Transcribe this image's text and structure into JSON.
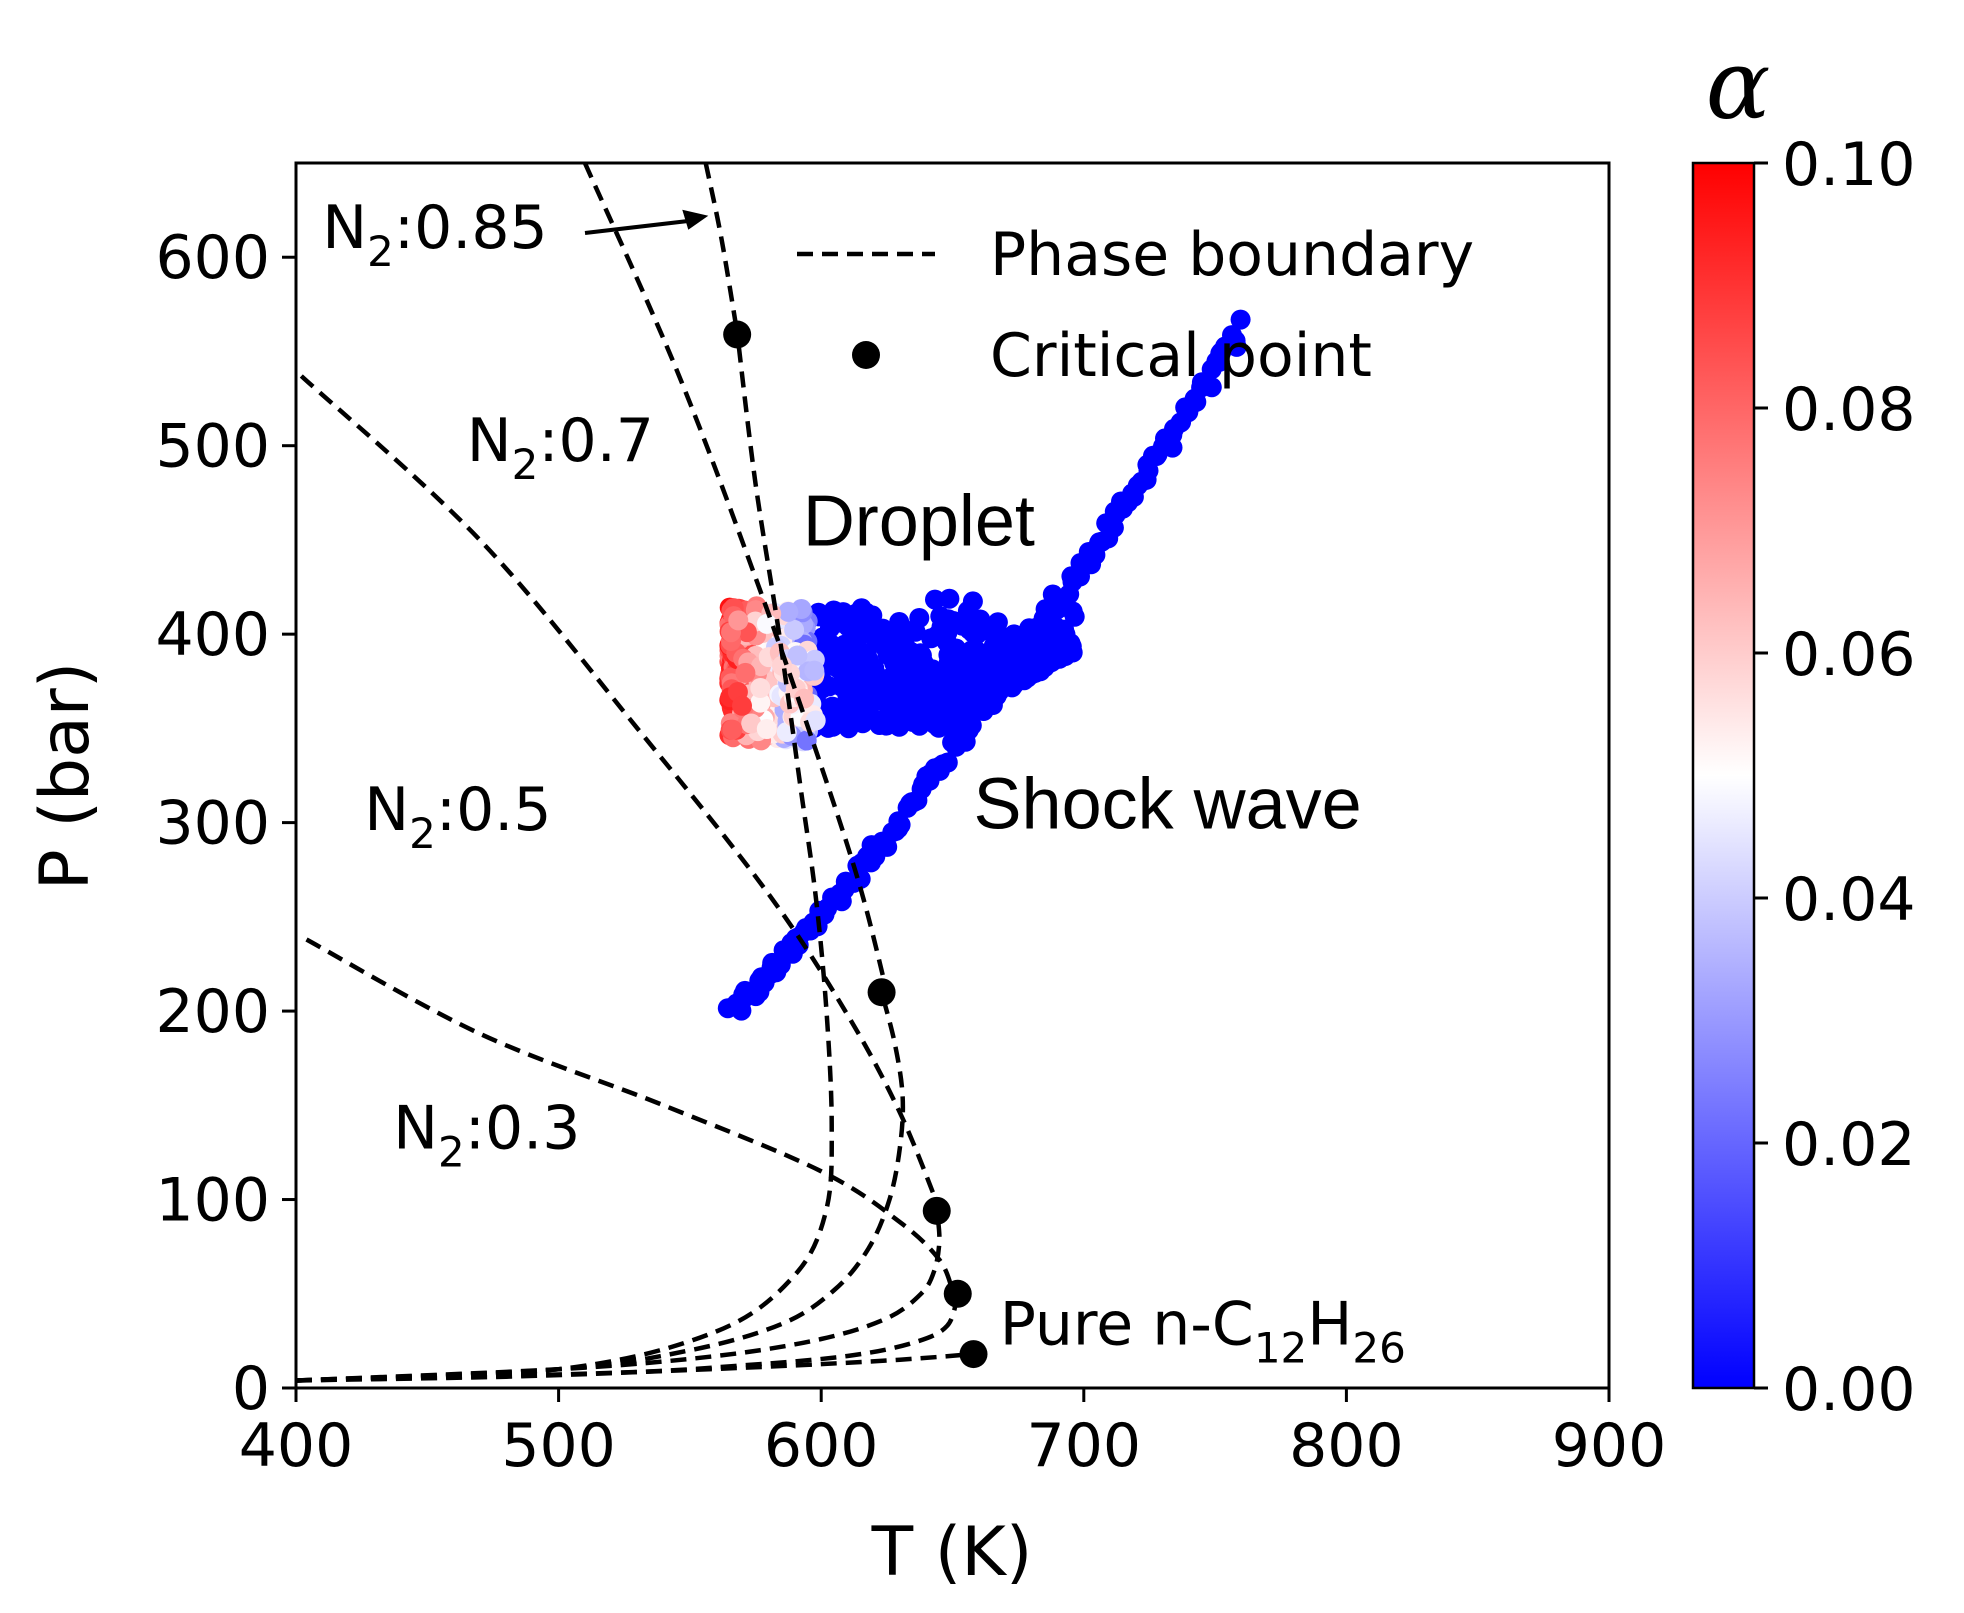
{
  "chart_data": {
    "type": "scatter",
    "xlabel": "T (K)",
    "ylabel": "P (bar)",
    "xlim": [
      400,
      900
    ],
    "ylim": [
      0,
      650
    ],
    "xticks": [
      "400",
      "500",
      "600",
      "700",
      "800",
      "900"
    ],
    "yticks": [
      "0",
      "100",
      "200",
      "300",
      "400",
      "500",
      "600"
    ],
    "legend": {
      "position": "top-right",
      "entries": [
        {
          "label": "Phase boundary",
          "style": "dashed-line"
        },
        {
          "label": "Critical point",
          "style": "black-dot"
        }
      ]
    },
    "colorbar": {
      "label": "α",
      "range": [
        0.0,
        0.1
      ],
      "ticks": [
        "0.00",
        "0.02",
        "0.04",
        "0.06",
        "0.08",
        "0.10"
      ],
      "colormap": "bwr",
      "colors": {
        "low": "#0000ff",
        "mid": "#ffffff",
        "high": "#ff0000"
      }
    },
    "annotations": [
      {
        "sub_parts": [
          "N",
          "2",
          ":0.85"
        ],
        "x": 410,
        "y": 605,
        "arrow_to": [
          557,
          622
        ]
      },
      {
        "sub_parts": [
          "N",
          "2",
          ":0.7"
        ],
        "x": 465,
        "y": 492
      },
      {
        "sub_parts": [
          "N",
          "2",
          ":0.5"
        ],
        "x": 426,
        "y": 296
      },
      {
        "sub_parts": [
          "N",
          "2",
          ":0.3"
        ],
        "x": 437,
        "y": 127
      },
      {
        "sub_parts": [
          "Pure n-C",
          "12",
          "H",
          "26"
        ],
        "x": 668,
        "y": 23
      },
      {
        "text": "Droplet",
        "x": 593,
        "y": 447
      },
      {
        "text": "Shock wave",
        "x": 658,
        "y": 297
      }
    ],
    "phase_boundaries": [
      {
        "name": "Pure n-C12H26",
        "x": [
          400,
          480,
          540,
          590,
          630,
          658
        ],
        "y": [
          4,
          6,
          9,
          12,
          15,
          18
        ]
      },
      {
        "name": "N2:0.3",
        "x": [
          400,
          520,
          570,
          610,
          635,
          648,
          652
        ],
        "y": [
          4,
          8,
          12,
          17,
          24,
          33,
          50
        ]
      },
      {
        "name": "N2:0.5",
        "x": [
          400,
          500,
          560,
          600,
          625,
          638,
          643,
          645,
          644
        ],
        "y": [
          4,
          10,
          17,
          26,
          37,
          50,
          62,
          78,
          95
        ]
      },
      {
        "name": "N2:0.7",
        "x": [
          400,
          500,
          550,
          585,
          605,
          618,
          626,
          630,
          631,
          628,
          623
        ],
        "y": [
          4,
          10,
          20,
          34,
          52,
          74,
          100,
          128,
          155,
          183,
          210
        ]
      },
      {
        "name": "N2:0.85",
        "x": [
          400,
          500,
          560,
          590,
          602,
          604,
          602,
          598,
          592,
          584,
          575,
          568
        ],
        "y": [
          4,
          10,
          30,
          60,
          95,
          140,
          200,
          260,
          320,
          400,
          480,
          560
        ]
      },
      {
        "name": "N2:0.3 branch",
        "x": [
          404,
          470,
          540,
          600,
          630,
          645,
          650
        ],
        "y": [
          238,
          188,
          150,
          115,
          88,
          68,
          52
        ]
      },
      {
        "name": "N2:0.5 branch",
        "x": [
          402,
          470,
          530,
          580,
          610,
          630,
          645
        ],
        "y": [
          537,
          450,
          350,
          262,
          198,
          146,
          95
        ]
      },
      {
        "name": "N2:0.7 branch",
        "x": [
          510,
          545,
          575,
          600,
          615,
          625
        ],
        "y": [
          650,
          540,
          430,
          330,
          265,
          210
        ]
      },
      {
        "name": "N2:0.85 branch",
        "x": [
          556,
          562,
          568
        ],
        "y": [
          650,
          610,
          560
        ]
      }
    ],
    "critical_points": [
      {
        "x": 568,
        "y": 559
      },
      {
        "x": 623,
        "y": 210
      },
      {
        "x": 644,
        "y": 94
      },
      {
        "x": 652,
        "y": 50
      },
      {
        "x": 658,
        "y": 18
      }
    ],
    "series": [
      {
        "name": "Shock wave",
        "x_range": [
          565,
          762
        ],
        "y_range": [
          200,
          562
        ],
        "alpha": 0.0
      },
      {
        "name": "Droplet",
        "x_range": [
          565,
          700
        ],
        "y_range": [
          342,
          430
        ],
        "alpha_range": [
          0.0,
          0.1
        ]
      }
    ]
  }
}
